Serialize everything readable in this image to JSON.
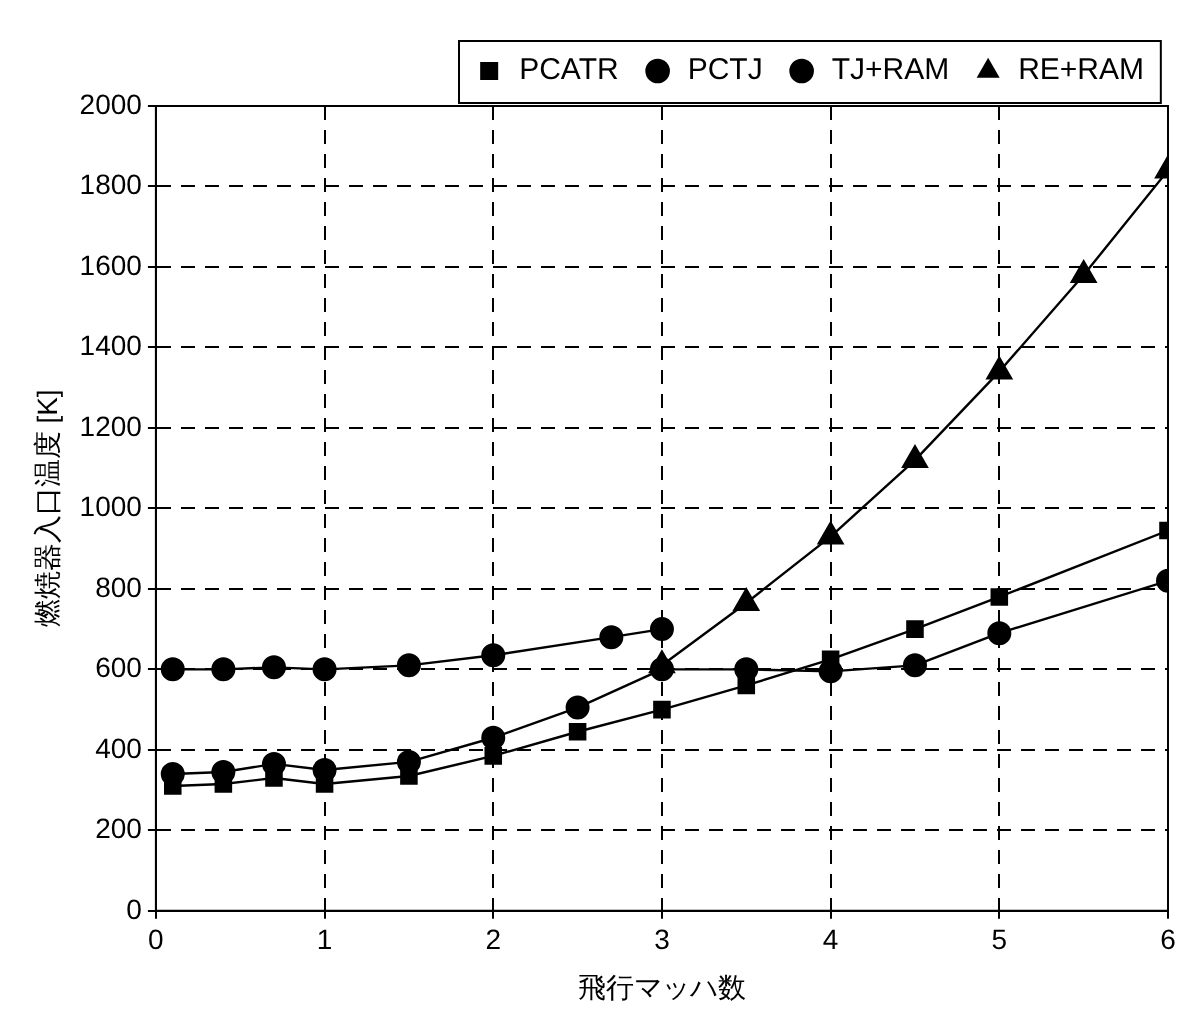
{
  "chart_data": {
    "type": "line",
    "xlabel": "飛行マッハ数",
    "ylabel": "燃焼器入口温度 [K]",
    "xlim": [
      0,
      6
    ],
    "xticks": [
      0,
      1,
      2,
      3,
      4,
      5,
      6
    ],
    "ylim": [
      0,
      2000
    ],
    "yticks": [
      0,
      200,
      400,
      600,
      800,
      1000,
      1200,
      1400,
      1600,
      1800,
      2000
    ],
    "grid": true,
    "legend": "top",
    "line_style": "solid",
    "series": [
      {
        "name": "PCATR",
        "color": "#000000",
        "marker": "square",
        "x": [
          0.1,
          0.4,
          0.7,
          1.0,
          1.5,
          2.0,
          2.5,
          3.0,
          3.5,
          4.0,
          4.5,
          5.0,
          6.0
        ],
        "values": [
          310,
          315,
          330,
          315,
          335,
          385,
          445,
          500,
          560,
          625,
          700,
          780,
          945
        ]
      },
      {
        "name": "PCTJ",
        "color": "#000000",
        "marker": "circle",
        "x": [
          0.1,
          0.4,
          0.7,
          1.0,
          1.5,
          2.0,
          2.5,
          3.0,
          3.5,
          4.0,
          4.5,
          5.0,
          6.0
        ],
        "values": [
          340,
          345,
          365,
          350,
          370,
          430,
          505,
          600,
          600,
          595,
          610,
          690,
          820
        ]
      },
      {
        "name": "TJ+RAM",
        "color": "#000000",
        "marker": "circle",
        "x": [
          0.1,
          0.4,
          0.7,
          1.0,
          1.5,
          2.0,
          2.7,
          3.0
        ],
        "values": [
          600,
          600,
          605,
          600,
          610,
          635,
          680,
          700
        ]
      },
      {
        "name": "RE+RAM",
        "color": "#000000",
        "marker": "triangle",
        "x": [
          3.0,
          3.5,
          4.0,
          4.5,
          5.0,
          5.5,
          6.0
        ],
        "values": [
          610,
          765,
          930,
          1120,
          1340,
          1580,
          1840
        ]
      }
    ]
  }
}
